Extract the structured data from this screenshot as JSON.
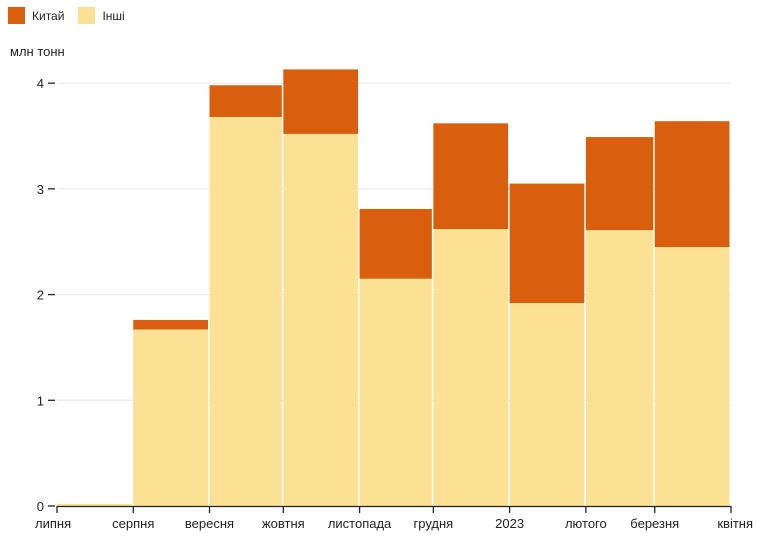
{
  "chart_data": {
    "type": "bar",
    "stacked": true,
    "ylabel": "млн тонн",
    "ylim": [
      0,
      4.2
    ],
    "yticks": [
      0,
      1,
      2,
      3,
      4
    ],
    "xticks": [
      {
        "label": "липня",
        "date": "2022-07-01"
      },
      {
        "label": "серпня",
        "date": "2022-08-01"
      },
      {
        "label": "вересня",
        "date": "2022-09-01"
      },
      {
        "label": "жовтня",
        "date": "2022-10-01"
      },
      {
        "label": "листопада",
        "date": "2022-11-01"
      },
      {
        "label": "грудня",
        "date": "2022-12-01"
      },
      {
        "label": "2023",
        "date": "2023-01-01"
      },
      {
        "label": "лютого",
        "date": "2023-02-01"
      },
      {
        "label": "березня",
        "date": "2023-03-01"
      },
      {
        "label": "квітня",
        "date": "2023-04-01"
      }
    ],
    "periods": [
      {
        "start": "2022-07-01",
        "end": "2022-08-01",
        "Китай": 0.0,
        "Інші": 0.02
      },
      {
        "start": "2022-08-01",
        "end": "2022-09-01",
        "Китай": 0.09,
        "Інші": 1.67
      },
      {
        "start": "2022-09-01",
        "end": "2022-10-01",
        "Китай": 0.3,
        "Інші": 3.68
      },
      {
        "start": "2022-10-01",
        "end": "2022-11-01",
        "Китай": 0.61,
        "Інші": 3.52
      },
      {
        "start": "2022-11-01",
        "end": "2022-12-01",
        "Китай": 0.66,
        "Інші": 2.15
      },
      {
        "start": "2022-12-01",
        "end": "2023-01-01",
        "Китай": 1.0,
        "Інші": 2.62
      },
      {
        "start": "2023-01-01",
        "end": "2023-02-01",
        "Китай": 1.13,
        "Інші": 1.92
      },
      {
        "start": "2023-02-01",
        "end": "2023-03-01",
        "Китай": 0.88,
        "Інші": 2.61
      },
      {
        "start": "2023-03-01",
        "end": "2023-04-01",
        "Китай": 1.19,
        "Інші": 2.45
      }
    ],
    "series": [
      {
        "name": "Китай",
        "color": "#D95F0E"
      },
      {
        "name": "Інші",
        "color": "#FCE195"
      }
    ],
    "grid": true,
    "legend_position": "top-left"
  }
}
